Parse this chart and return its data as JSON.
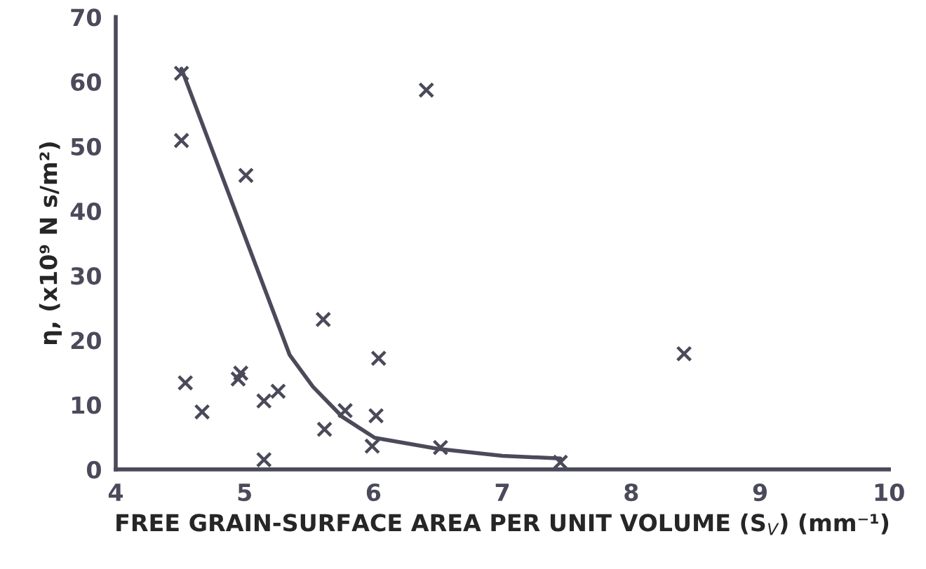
{
  "chart_data": {
    "type": "scatter",
    "xlabel": "FREE GRAIN-SURFACE AREA PER UNIT VOLUME (S$_{V}$) (mm⁻¹)",
    "ylabel": "η, (x10⁹ N s/m²)",
    "xlim": [
      4,
      10
    ],
    "xticks": [
      4,
      5,
      6,
      7,
      8,
      9,
      10
    ],
    "ylim": [
      0,
      70
    ],
    "yticks": [
      0,
      10,
      20,
      30,
      40,
      50,
      60,
      70
    ],
    "grid": false,
    "legend": false,
    "series": [
      {
        "marker": "cross",
        "color": "#4a4a5a",
        "x": [
          4.51,
          4.51,
          5.01,
          6.41,
          5.61,
          6.04,
          4.54,
          4.67,
          4.95,
          4.97,
          5.15,
          5.26,
          5.15,
          5.62,
          5.78,
          6.02,
          5.99,
          6.52,
          7.45,
          8.41
        ],
        "values": [
          61.3,
          50.9,
          45.5,
          58.7,
          23.2,
          17.2,
          13.4,
          8.9,
          14.0,
          14.9,
          10.6,
          12.1,
          1.5,
          6.2,
          9.1,
          8.3,
          3.6,
          3.4,
          1.1,
          17.9
        ]
      },
      {
        "type": "line",
        "marker": "none",
        "line_style": "solid",
        "color": "#4a4a5a",
        "x": [
          4.51,
          5.35,
          5.53,
          5.76,
          6.01,
          6.5,
          7.0,
          7.45
        ],
        "values": [
          62,
          17.7,
          12.8,
          8.1,
          4.9,
          3.2,
          2.1,
          1.7
        ]
      }
    ]
  }
}
